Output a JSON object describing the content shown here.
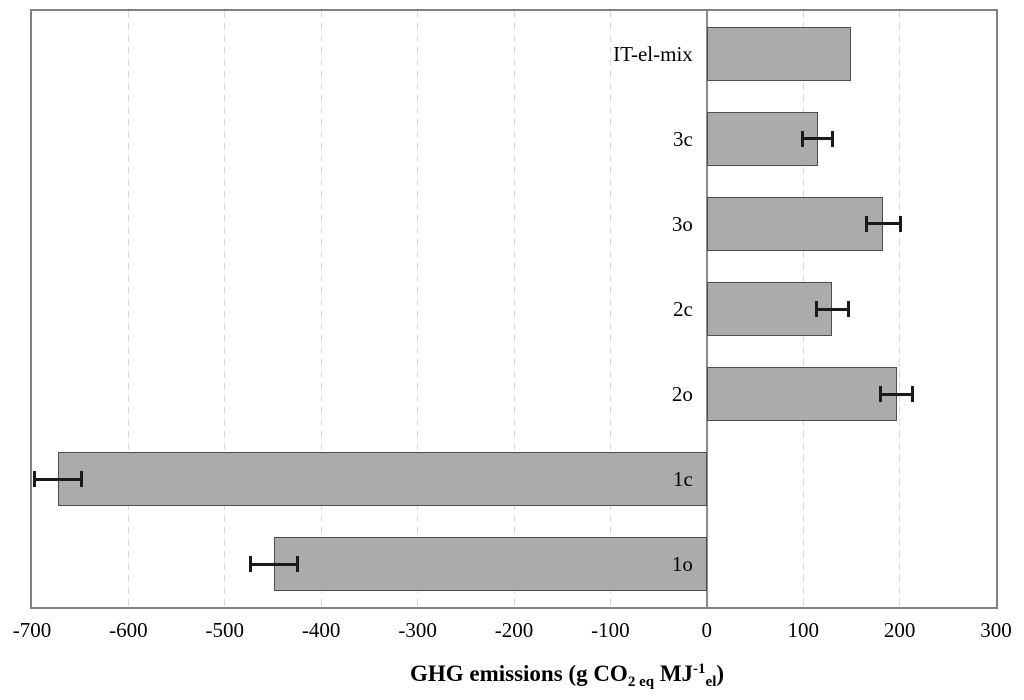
{
  "chart_data": {
    "type": "bar",
    "orientation": "horizontal",
    "title": "",
    "categories": [
      "IT-el-mix",
      "3c",
      "3o",
      "2c",
      "2o",
      "1c",
      "1o"
    ],
    "values": [
      150,
      115,
      183,
      130,
      197,
      -673,
      -449
    ],
    "error_bars": [
      null,
      16,
      18,
      17,
      17,
      25,
      25
    ],
    "xlabel": "GHG emissions (g CO2 eq MJ-1 el)",
    "xlabel_parts": {
      "prefix": "GHG emissions (g CO",
      "sub1": "2 eq",
      "mid": " MJ",
      "sup": "-1",
      "sub2": "el",
      "suffix": ")"
    },
    "ylabel": "",
    "xlim": [
      -700,
      300
    ],
    "xticks": [
      -700,
      -600,
      -500,
      -400,
      -300,
      -200,
      -100,
      0,
      100,
      200,
      300
    ],
    "grid": "vertical dashed gridlines at each x tick",
    "legend": "none",
    "bar_fraction_of_slot": 0.63,
    "colors": {
      "bar_fill": "#ababab",
      "bar_border": "#4d4d4d",
      "gridline": "#d9d9d9",
      "axis_border": "#808080",
      "zero_axis": "#8c8c8c",
      "error_bar": "#1a1a1a",
      "text": "#000000",
      "background": "#ffffff"
    }
  }
}
